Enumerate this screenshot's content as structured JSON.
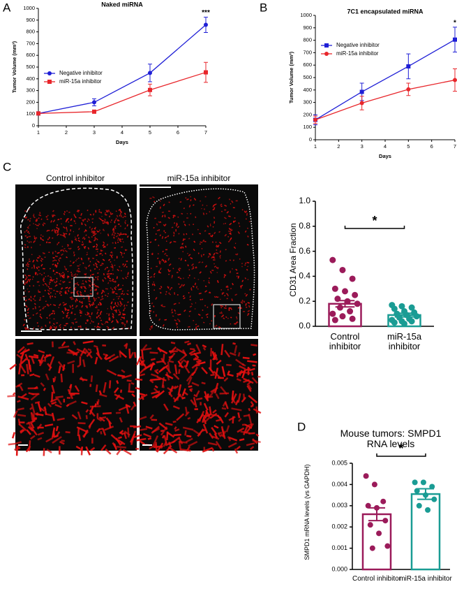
{
  "panels": {
    "letters": [
      "A",
      "B",
      "C",
      "D"
    ],
    "image_labels": [
      "Control inhibitor",
      "miR-15a inhibitor"
    ]
  },
  "chart_data": [
    {
      "type": "line",
      "title": "Naked miRNA",
      "xlabel": "Days",
      "ylabel": "Tumor Volume (mm³)",
      "x": [
        1,
        3,
        5,
        7
      ],
      "xlim": [
        1,
        7
      ],
      "xticks": [
        1,
        2,
        3,
        4,
        5,
        6,
        7
      ],
      "ylim": [
        0,
        1000
      ],
      "yticks": [
        0,
        100,
        200,
        300,
        400,
        500,
        600,
        700,
        800,
        900,
        1000
      ],
      "legend": "upper left",
      "series": [
        {
          "name": "Negative inhibitor",
          "color": "#1f1fd6",
          "marker": "circle",
          "values": [
            105,
            200,
            450,
            860
          ],
          "errors": [
            15,
            30,
            75,
            65
          ]
        },
        {
          "name": "miR-15a inhibitor",
          "color": "#e8262b",
          "marker": "square",
          "values": [
            105,
            120,
            305,
            455
          ],
          "errors": [
            10,
            8,
            50,
            85
          ]
        }
      ],
      "annotations": [
        {
          "text": "***",
          "x": 7
        }
      ]
    },
    {
      "type": "line",
      "title": "7C1 encapsulated miRNA",
      "xlabel": "Days",
      "ylabel": "Tumor Volume (mm³)",
      "x": [
        1,
        3,
        5,
        7
      ],
      "xlim": [
        1,
        7
      ],
      "xticks": [
        1,
        2,
        3,
        4,
        5,
        6,
        7
      ],
      "ylim": [
        0,
        1000
      ],
      "yticks": [
        0,
        100,
        200,
        300,
        400,
        500,
        600,
        700,
        800,
        900,
        1000
      ],
      "legend": "upper left",
      "series": [
        {
          "name": "Negative inhibitor",
          "color": "#1f1fd6",
          "marker": "square",
          "values": [
            160,
            385,
            590,
            805
          ],
          "errors": [
            40,
            70,
            100,
            100
          ]
        },
        {
          "name": "miR-15a inhibitor",
          "color": "#e8262b",
          "marker": "circle",
          "values": [
            160,
            295,
            405,
            480
          ],
          "errors": [
            30,
            55,
            50,
            90
          ]
        }
      ],
      "annotations": [
        {
          "text": "*",
          "x": 7
        }
      ]
    },
    {
      "type": "dotbar",
      "ylabel": "CD31 Area Fraction",
      "categories": [
        "Control inhibitor",
        "miR-15a inhibitor"
      ],
      "colors": [
        "#9b1b5a",
        "#1a9c94"
      ],
      "values": [
        0.18,
        0.09
      ],
      "errors": [
        0.025,
        0.015
      ],
      "points": [
        [
          0.53,
          0.45,
          0.38,
          0.3,
          0.28,
          0.25,
          0.22,
          0.2,
          0.18,
          0.15,
          0.12,
          0.1,
          0.08,
          0.06,
          0.05
        ],
        [
          0.17,
          0.16,
          0.15,
          0.14,
          0.12,
          0.11,
          0.1,
          0.09,
          0.08,
          0.07,
          0.06,
          0.05,
          0.04,
          0.04,
          0.03,
          0.02
        ]
      ],
      "ylim": [
        0,
        1
      ],
      "yticks": [
        {
          "value": 0,
          "label": "0.0"
        },
        0.2,
        0.4,
        0.6,
        0.8,
        {
          "value": 1,
          "label": "1.0"
        }
      ],
      "annotations": [
        {
          "text": "*"
        }
      ]
    },
    {
      "type": "dotbar",
      "title": "Mouse tumors: SMPD1 RNA levels",
      "ylabel": "SMPD1 mRNA levels (vs GAPDH)",
      "categories": [
        "Control inhibitor",
        "miR-15a inhibitor"
      ],
      "colors": [
        "#9b1b5a",
        "#1a9c94"
      ],
      "values": [
        0.0026,
        0.00355
      ],
      "errors": [
        0.0003,
        0.00025
      ],
      "points": [
        [
          0.0044,
          0.004,
          0.0032,
          0.003,
          0.0029,
          0.0023,
          0.0021,
          0.0017,
          0.0011,
          0.001
        ],
        [
          0.0041,
          0.0041,
          0.0039,
          0.0037,
          0.0035,
          0.0033,
          0.003,
          0.0028
        ]
      ],
      "ylim": [
        0,
        0.005
      ],
      "yticks": [
        {
          "value": 0,
          "label": "0.000"
        },
        {
          "value": 0.001,
          "label": "0.001"
        },
        {
          "value": 0.002,
          "label": "0.002"
        },
        {
          "value": 0.003,
          "label": "0.003"
        },
        {
          "value": 0.004,
          "label": "0.004"
        },
        {
          "value": 0.005,
          "label": "0.005"
        }
      ],
      "annotations": [
        {
          "text": "*"
        }
      ]
    }
  ]
}
